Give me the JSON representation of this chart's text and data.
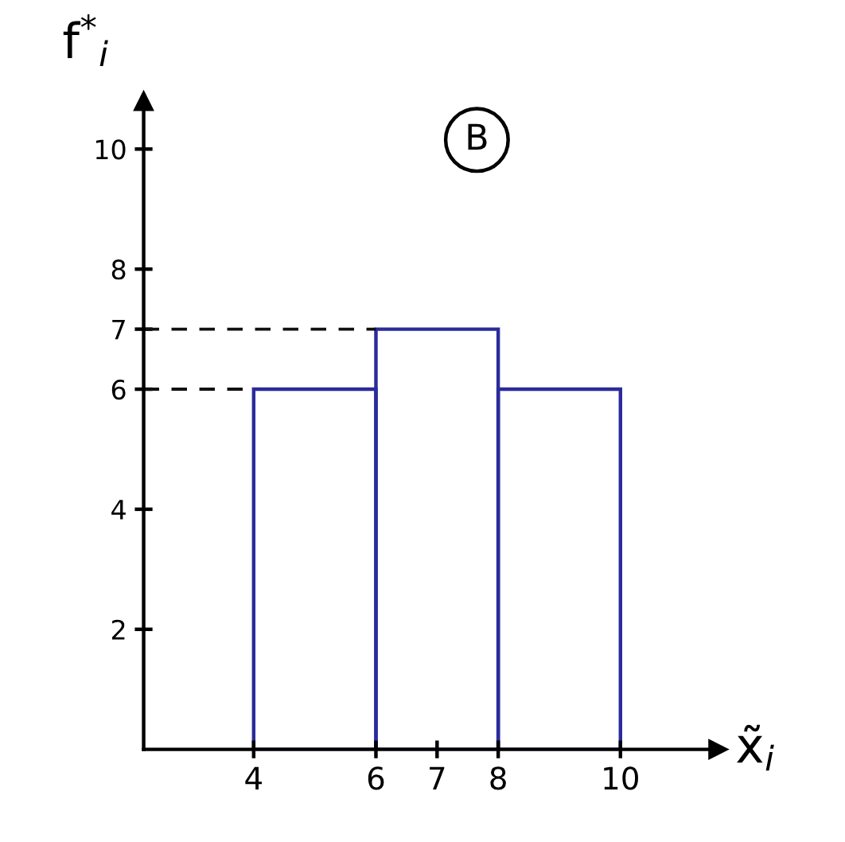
{
  "chart_data": {
    "type": "histogram",
    "xlabel": "x̃$_{i}$",
    "ylabel": "f$^{*}$$_{i}$",
    "bins": [
      4,
      6,
      8,
      10
    ],
    "values": [
      6,
      7,
      6
    ],
    "color": "#2b2b9c",
    "xlim": [
      2.2,
      11.6
    ],
    "ylim": [
      0,
      10.8
    ],
    "xticks": [
      4,
      6,
      7,
      8,
      10
    ],
    "yticks": [
      2,
      4,
      6,
      7,
      8,
      10
    ],
    "ref_lines": [
      {
        "axis": "y",
        "value": 6,
        "line_style": "dashed",
        "color": "#111111"
      },
      {
        "axis": "y",
        "value": 7,
        "line_style": "dashed",
        "color": "#111111"
      }
    ],
    "annotations": [
      {
        "text": "B"
      }
    ],
    "grid": false,
    "legend": false
  }
}
